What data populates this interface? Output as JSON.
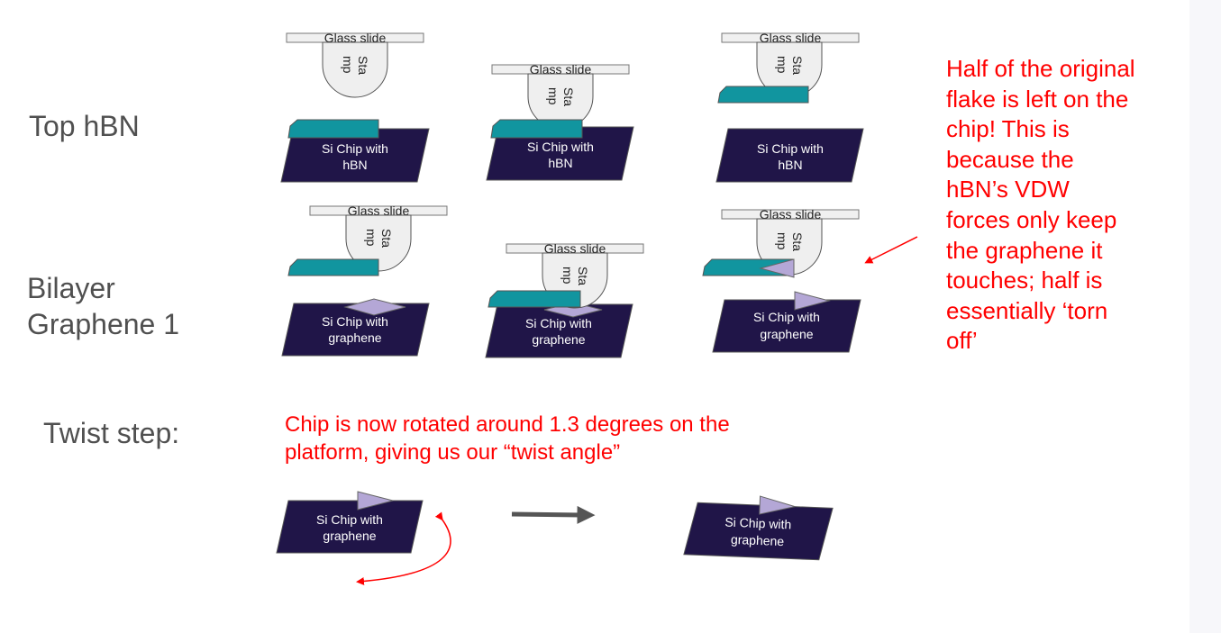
{
  "row_labels": {
    "top_hbn": "Top hBN",
    "bilayer": "Bilayer\nGraphene 1",
    "twist": "Twist step:"
  },
  "labels": {
    "glass_slide": "Glass slide",
    "stamp_line1": "Sta",
    "stamp_line2": "mp",
    "chip_hbn_line1": "Si Chip with",
    "chip_hbn_line2": "hBN",
    "chip_graphene_line1": "Si Chip with",
    "chip_graphene_line2": "graphene"
  },
  "notes": {
    "torn_off": "Half of the original\nflake is left on the\nchip! This is\nbecause the\nhBN’s VDW\nforces only keep\nthe graphene it\ntouches; half is\nessentially ‘torn\noff’",
    "twist": "Chip is now rotated around 1.3 degrees on the\nplatform, giving us our “twist angle”"
  },
  "colors": {
    "chip": "#201548",
    "hbn": "#11959f",
    "graphene": "#b4a7d6",
    "glass_slide": "#f0f0f0",
    "stamp": "#efefef",
    "annotation": "#ff0000",
    "arrow": "#555555",
    "label": "#505050"
  }
}
